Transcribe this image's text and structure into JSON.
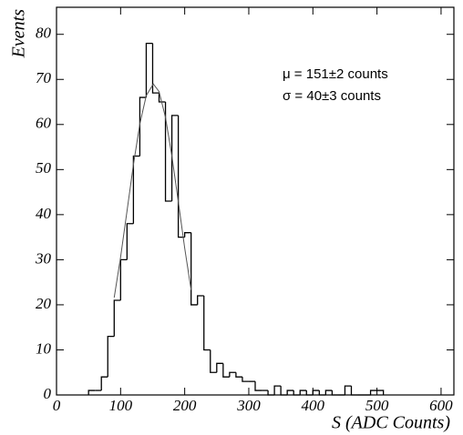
{
  "chart_data": {
    "type": "histogram",
    "xlabel": "S (ADC Counts)",
    "ylabel": "Events",
    "bins": [
      50,
      60,
      70,
      80,
      90,
      100,
      110,
      120,
      130,
      140,
      150,
      160,
      170,
      180,
      190,
      200,
      210,
      220,
      230,
      240,
      250,
      260,
      270,
      280,
      290,
      300,
      310,
      320,
      330,
      340,
      350,
      360,
      370,
      380,
      390,
      400,
      410,
      420,
      430,
      440,
      450,
      460,
      470,
      480,
      490,
      500,
      510
    ],
    "counts": [
      1,
      1,
      4,
      13,
      21,
      30,
      38,
      53,
      66,
      78,
      67,
      65,
      43,
      62,
      35,
      36,
      20,
      22,
      10,
      5,
      7,
      4,
      5,
      4,
      3,
      3,
      1,
      1,
      0,
      2,
      0,
      1,
      0,
      1,
      0,
      1,
      0,
      1,
      0,
      0,
      2,
      0,
      0,
      0,
      1,
      1
    ],
    "color": "#000000",
    "fit": {
      "x": [
        90,
        100,
        110,
        120,
        130,
        140,
        151,
        160,
        170,
        180,
        190,
        200,
        210
      ],
      "values": [
        21.6,
        30.6,
        40.8,
        51.1,
        60.1,
        66.4,
        69,
        67.3,
        61.6,
        53.0,
        42.9,
        32.6,
        23.3
      ],
      "color": "#555555"
    },
    "annotations": [
      "μ = 151±2 counts",
      "σ =  40±3 counts"
    ],
    "xlim": [
      0,
      620
    ],
    "ylim": [
      0,
      86
    ],
    "xticks": [
      0,
      100,
      200,
      300,
      400,
      500,
      600
    ],
    "yticks": [
      0,
      10,
      20,
      30,
      40,
      50,
      60,
      70,
      80
    ]
  }
}
